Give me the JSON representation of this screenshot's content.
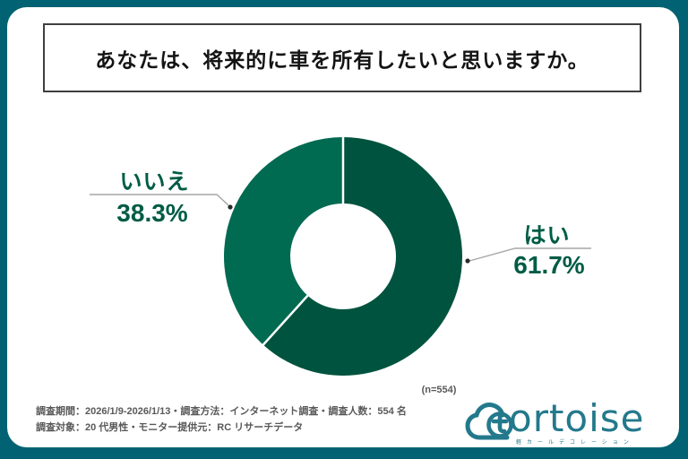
{
  "frame": {
    "background": "#006272",
    "card_color": "#ffffff"
  },
  "title": {
    "text": "あなたは、将来的に車を所有したいと思いますか。"
  },
  "chart_data": {
    "type": "donut",
    "title": "あなたは、将来的に車を所有したいと思いますか。",
    "slices": [
      {
        "label": "はい",
        "value": 61.7,
        "display": "61.7%",
        "color": "#00533E"
      },
      {
        "label": "いいえ",
        "value": 38.3,
        "display": "38.3%",
        "color": "#006B51"
      }
    ],
    "start_angle_deg": -90,
    "direction": "clockwise",
    "hole_ratio": 0.44,
    "sample_label": "(n=554)",
    "label_color": "#005C45",
    "leader_line_color": "#a6a6a6",
    "legend": "none"
  },
  "footer": {
    "line1": "調査期間：2026/1/9-2026/1/13・調査方法：インターネット調査・調査人数：554 名",
    "line2": "調査対象：20 代男性・モニター提供元：RC リサーチデータ",
    "text_color": "#595959"
  },
  "logo": {
    "text": "ortoise",
    "tagline": "軽カールデコレーション",
    "color": "#23798C"
  }
}
